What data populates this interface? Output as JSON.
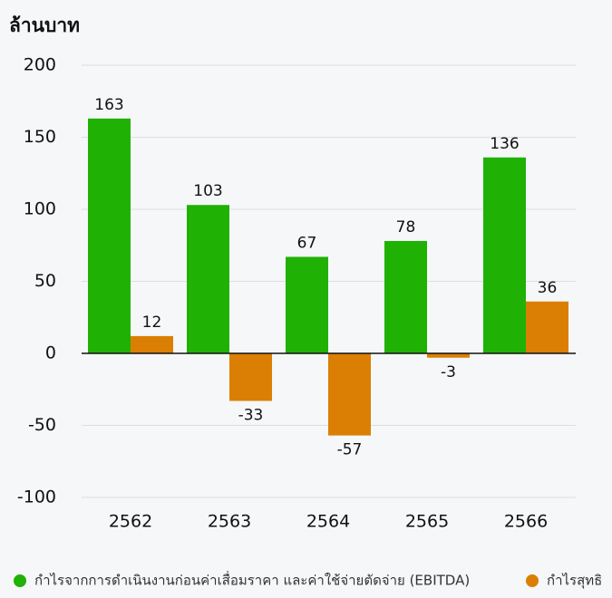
{
  "chart_data": {
    "type": "bar",
    "y_label": "ล้านบาท",
    "categories": [
      "2562",
      "2563",
      "2564",
      "2565",
      "2566"
    ],
    "series": [
      {
        "name": "กำไรจากการดำเนินงานก่อนค่าเสื่อมราคา และค่าใช้จ่ายตัดจ่าย (EBITDA)",
        "color": "#1fb104",
        "values": [
          163,
          103,
          67,
          78,
          136
        ]
      },
      {
        "name": "กำไรสุทธิ",
        "color": "#db7f04",
        "values": [
          12,
          -33,
          -57,
          -3,
          36
        ]
      }
    ],
    "ylim": [
      -100,
      200
    ],
    "yticks": [
      -100,
      -50,
      0,
      50,
      100,
      150,
      200
    ],
    "grid": true
  }
}
